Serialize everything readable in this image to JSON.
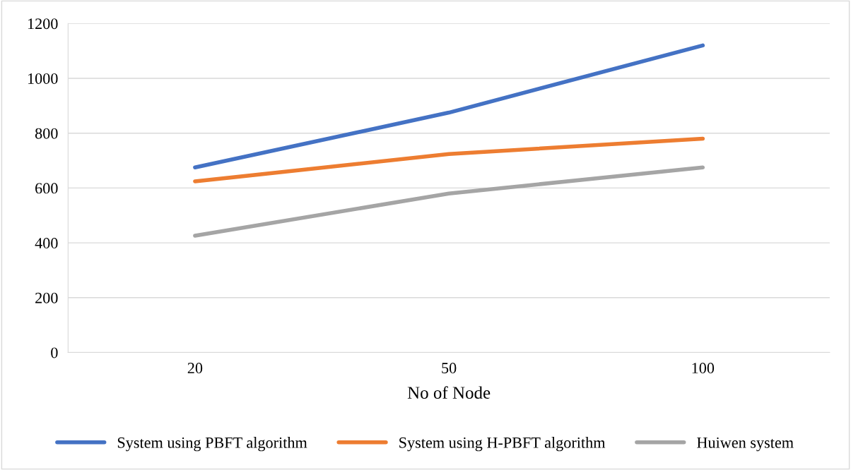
{
  "chart_data": {
    "type": "line",
    "xlabel": "No of Node",
    "categories": [
      "20",
      "50",
      "100"
    ],
    "series": [
      {
        "name": "System using PBFT algorithm",
        "color": "#4472c4",
        "values": [
          675,
          875,
          1120
        ]
      },
      {
        "name": "System using H-PBFT algorithm",
        "color": "#ed7d31",
        "values": [
          624,
          724,
          780
        ]
      },
      {
        "name": "Huiwen system",
        "color": "#a5a5a5",
        "values": [
          426,
          580,
          675
        ]
      }
    ],
    "ylim": [
      0,
      1200
    ],
    "yticks": [
      0,
      200,
      400,
      600,
      800,
      1000,
      1200
    ],
    "grid": "y",
    "legend": "bottom",
    "marker": "none",
    "line_style": "solid"
  }
}
